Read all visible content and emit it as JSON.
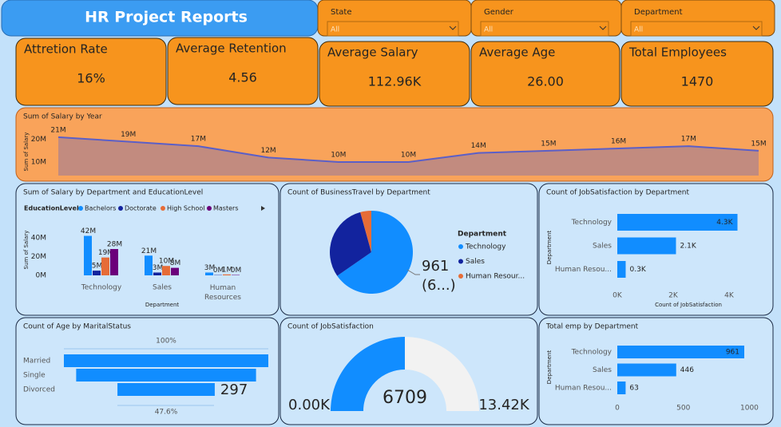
{
  "header": {
    "title": "HR Project Reports"
  },
  "slicers": [
    {
      "label": "State",
      "value": "All"
    },
    {
      "label": "Gender",
      "value": "All"
    },
    {
      "label": "Department",
      "value": "All"
    }
  ],
  "kpis": [
    {
      "label": "Attretion Rate",
      "value": "16%"
    },
    {
      "label": "Average Retention",
      "value": "4.56"
    },
    {
      "label": "Average Salary",
      "value": "112.96K"
    },
    {
      "label": "Average Age",
      "value": "26.00"
    },
    {
      "label": "Total Employees",
      "value": "1470"
    }
  ],
  "chart_data": [
    {
      "type": "area",
      "title": "Sum of Salary by Year",
      "y_label": "Sum of Salary",
      "color": "#5b5fc7",
      "values": [
        21,
        19,
        17,
        12,
        10,
        10,
        14,
        15,
        16,
        17,
        15
      ],
      "value_labels": [
        "21M",
        "19M",
        "17M",
        "12M",
        "10M",
        "10M",
        "14M",
        "15M",
        "16M",
        "17M",
        "15M"
      ],
      "ylim": [
        4,
        22
      ],
      "yticks": [
        {
          "value": 10,
          "label": "10M"
        },
        {
          "value": 20,
          "label": "20M"
        }
      ]
    },
    {
      "type": "grouped_bar",
      "title": "Sum of Salary by Department and EducationLevel",
      "legend_title": "EducationLevel",
      "y_label": "Sum of Salary",
      "x_label": "Department",
      "categories": [
        "Technology",
        "Sales",
        "Human Resources"
      ],
      "series": [
        {
          "name": "Bachelors",
          "color": "#118dff",
          "values": [
            42,
            21,
            3
          ],
          "value_labels": [
            "42M",
            "21M",
            "3M"
          ]
        },
        {
          "name": "Doctorate",
          "color": "#12239e",
          "values": [
            5,
            3,
            0.3
          ],
          "value_labels": [
            "5M",
            "3M",
            "0M"
          ]
        },
        {
          "name": "High School",
          "color": "#e66c37",
          "values": [
            19,
            10,
            1
          ],
          "value_labels": [
            "19M",
            "10M",
            "1M"
          ]
        },
        {
          "name": "Masters",
          "color": "#6b007b",
          "values": [
            28,
            8,
            0.4
          ],
          "value_labels": [
            "28M",
            "8M",
            "0M"
          ]
        }
      ],
      "ylim": [
        0,
        45
      ],
      "yticks": [
        {
          "value": 0,
          "label": "0M"
        },
        {
          "value": 20,
          "label": "20M"
        },
        {
          "value": 40,
          "label": "40M"
        }
      ]
    },
    {
      "type": "pie",
      "title": "Count of BusinessTravel by Department",
      "legend_title": "Department",
      "categories": [
        "Technology",
        "Sales",
        "Human Resour..."
      ],
      "values": [
        961,
        446,
        63
      ],
      "colors": [
        "#118dff",
        "#12239e",
        "#e66c37"
      ],
      "value_labels": [
        "961 (6...)",
        null,
        null
      ]
    },
    {
      "type": "hbar",
      "title": "Count of JobSatisfaction by Department",
      "x_label": "Count of JobSatisfaction",
      "y_label": "Department",
      "categories": [
        "Technology",
        "Sales",
        "Human Resou..."
      ],
      "values": [
        4.3,
        2.1,
        0.3
      ],
      "value_labels": [
        "4.3K",
        "2.1K",
        "0.3K"
      ],
      "color": "#118dff",
      "xlim": [
        0,
        5.2
      ],
      "xticks": [
        {
          "value": 0,
          "label": "0K"
        },
        {
          "value": 2,
          "label": "2K"
        },
        {
          "value": 4,
          "label": "4K"
        }
      ]
    },
    {
      "type": "funnel",
      "title": "Count of Age by MaritalStatus",
      "categories": [
        "Married",
        "Single",
        "Divorced"
      ],
      "values": [
        624,
        549,
        297
      ],
      "value_labels": [
        null,
        null,
        "297"
      ],
      "top_label": "100%",
      "bottom_label": "47.6%",
      "color": "#118dff"
    },
    {
      "type": "gauge",
      "title": "Count of JobSatisfaction",
      "value": 6709,
      "min": {
        "value": 0,
        "label": "0.00K"
      },
      "max": {
        "value": 13420,
        "label": "13.42K"
      },
      "color": "#118dff",
      "track_color": "#f2f2f2"
    },
    {
      "type": "hbar",
      "title": "Total emp by Department",
      "y_label": "Department",
      "categories": [
        "Technology",
        "Sales",
        "Human Resou..."
      ],
      "values": [
        961,
        446,
        63
      ],
      "color": "#118dff",
      "xlim": [
        0,
        1100
      ],
      "xticks": [
        0,
        500,
        1000
      ]
    }
  ]
}
